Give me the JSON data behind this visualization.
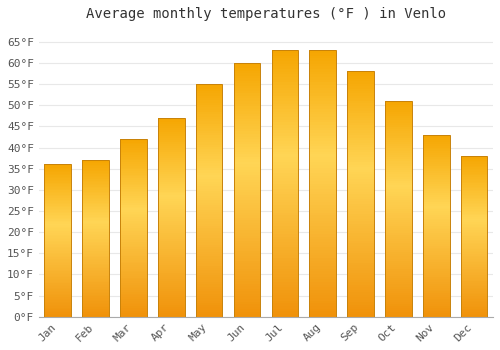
{
  "title": "Average monthly temperatures (°F ) in Venlo",
  "months": [
    "Jan",
    "Feb",
    "Mar",
    "Apr",
    "May",
    "Jun",
    "Jul",
    "Aug",
    "Sep",
    "Oct",
    "Nov",
    "Dec"
  ],
  "values": [
    36,
    37,
    42,
    47,
    55,
    60,
    63,
    63,
    58,
    51,
    43,
    38
  ],
  "bar_color_bottom": "#F5A623",
  "bar_color_mid": "#FFD050",
  "bar_color_top": "#F5A000",
  "bar_edge_color": "#C8820A",
  "ylim": [
    0,
    68
  ],
  "yticks": [
    0,
    5,
    10,
    15,
    20,
    25,
    30,
    35,
    40,
    45,
    50,
    55,
    60,
    65
  ],
  "ytick_labels": [
    "0°F",
    "5°F",
    "10°F",
    "15°F",
    "20°F",
    "25°F",
    "30°F",
    "35°F",
    "40°F",
    "45°F",
    "50°F",
    "55°F",
    "60°F",
    "65°F"
  ],
  "background_color": "#ffffff",
  "grid_color": "#e8e8e8",
  "title_fontsize": 10,
  "tick_fontsize": 8,
  "bar_width": 0.7
}
